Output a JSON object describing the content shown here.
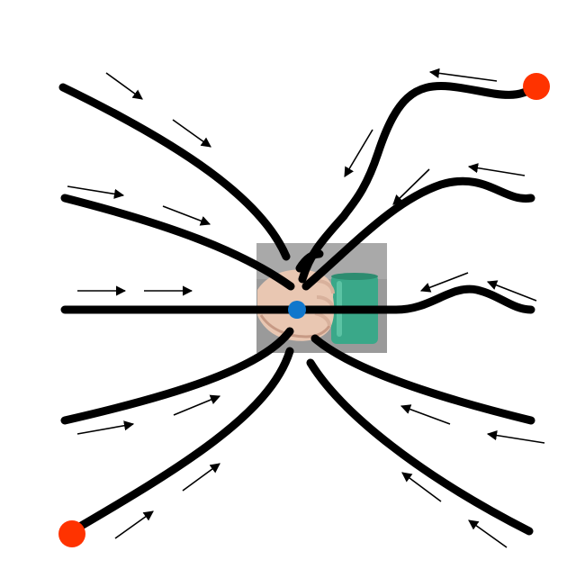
{
  "diagram": {
    "background_color": "#ffffff",
    "curve_color": "#000000",
    "arrow_color": "#000000",
    "endpoint_marker_color": "#ff3300",
    "center_marker_color": "#1177cc",
    "photo": {
      "subject": "hand-holding-mug",
      "mug_color": "#3aa889",
      "background_color": "#9a9a9a",
      "skin_color": "#e9c7b2"
    },
    "curve_count": 10,
    "arrow_count": 18,
    "endpoint_marker_count": 2
  }
}
